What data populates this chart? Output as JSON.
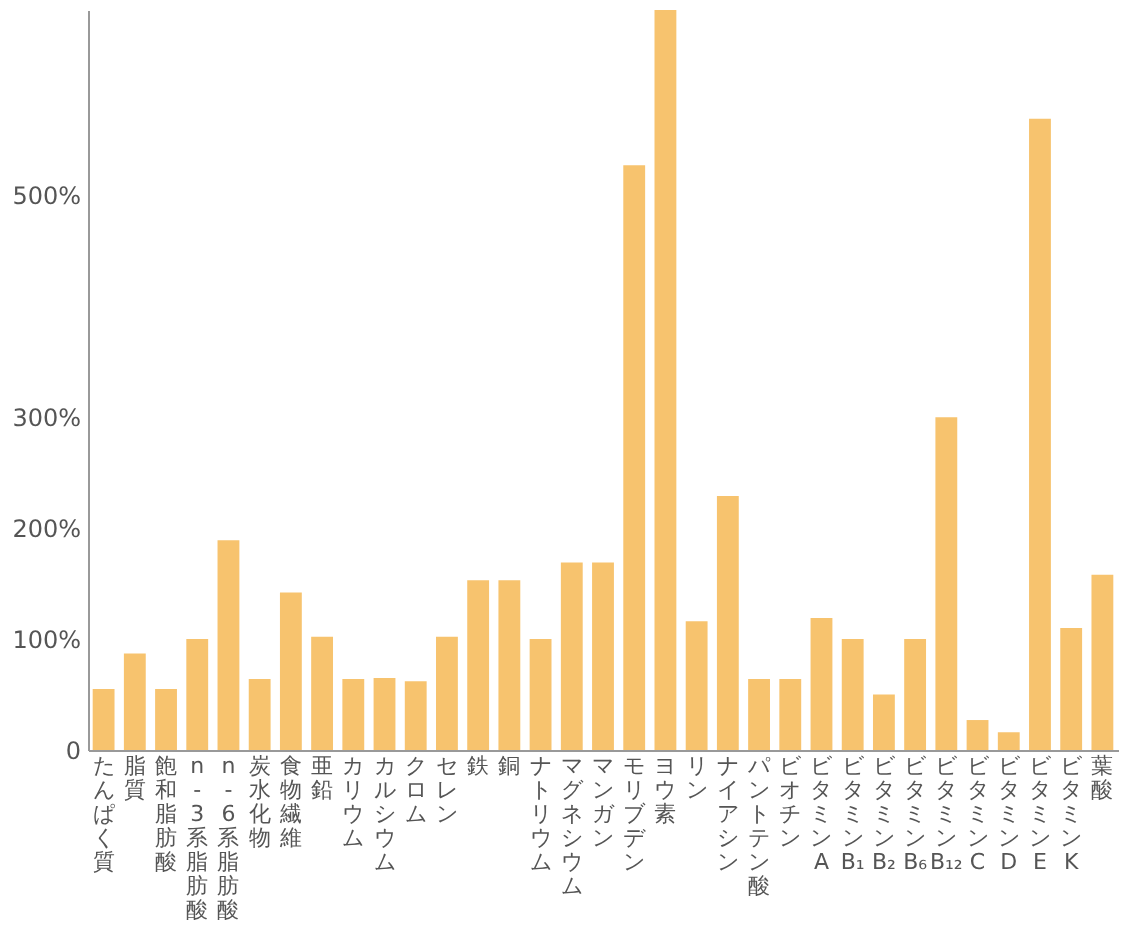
{
  "chart_data": {
    "type": "bar",
    "categories": [
      "たんぱく質",
      "脂質",
      "飽和脂肪酸",
      "n-3系脂肪酸",
      "n-6系脂肪酸",
      "炭水化物",
      "食物繊維",
      "亜鉛",
      "カリウム",
      "カルシウム",
      "クロム",
      "セレン",
      "鉄",
      "銅",
      "ナトリウム",
      "マグネシウム",
      "マンガン",
      "モリブデン",
      "ヨウ素",
      "リン",
      "ナイアシン",
      "パントテン酸",
      "ビオチン",
      "ビタミンA",
      "ビタミンB₁",
      "ビタミンB₂",
      "ビタミンB₆",
      "ビタミンB₁₂",
      "ビタミンC",
      "ビタミンD",
      "ビタミンE",
      "ビタミンK",
      "葉酸"
    ],
    "values": [
      55,
      87,
      55,
      100,
      189,
      64,
      142,
      102,
      64,
      65,
      62,
      102,
      153,
      153,
      100,
      169,
      169,
      527,
      667,
      116,
      229,
      64,
      64,
      119,
      100,
      50,
      100,
      300,
      27,
      16,
      569,
      110,
      158
    ],
    "color": "#f7c36e",
    "ylim": [
      0,
      667
    ],
    "yticks": [
      {
        "value": 0,
        "label": "0"
      },
      {
        "value": 100,
        "label": "100%"
      },
      {
        "value": 200,
        "label": "200%"
      },
      {
        "value": 300,
        "label": "300%"
      },
      {
        "value": 500,
        "label": "500%"
      }
    ],
    "grid": false
  }
}
